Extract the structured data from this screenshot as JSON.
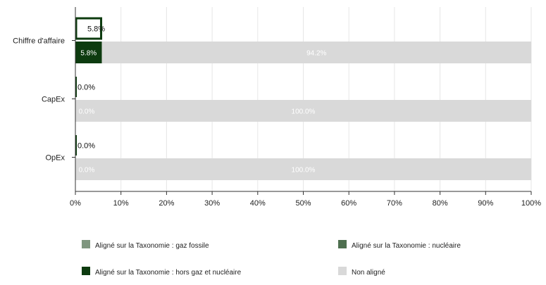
{
  "chart_data": {
    "type": "bar",
    "orientation": "horizontal",
    "categories": [
      "Chiffre d'affaire",
      "CapEx",
      "OpEx"
    ],
    "xlim": [
      0,
      100
    ],
    "x_ticks": [
      "0%",
      "10%",
      "20%",
      "30%",
      "40%",
      "50%",
      "60%",
      "70%",
      "80%",
      "90%",
      "100%"
    ],
    "grid": true,
    "legend_position": "bottom",
    "top_bars": {
      "description_text": "",
      "values": [
        5.8,
        0.0,
        0.0
      ],
      "labels": [
        "5.8%",
        "0.0%",
        "0.0%"
      ]
    },
    "series": [
      {
        "name": "Aligné sur la Taxonomie : gaz fossile",
        "color": "#7f967f",
        "values": [
          0.0,
          0.0,
          0.0
        ]
      },
      {
        "name": "Aligné sur la Taxonomie : nucléaire",
        "color": "#4e6f4f",
        "values": [
          0.0,
          0.0,
          0.0
        ]
      },
      {
        "name": "Aligné sur la Taxonomie : hors gaz et nucléaire",
        "color": "#0d3b0f",
        "values": [
          5.8,
          0.0,
          0.0
        ],
        "labels": [
          "5.8%",
          "0.0%",
          "0.0%"
        ]
      },
      {
        "name": "Non aligné",
        "color": "#d9d9d9",
        "values": [
          94.2,
          100.0,
          100.0
        ],
        "labels": [
          "94.2%",
          "100.0%",
          "100.0%"
        ]
      }
    ]
  }
}
